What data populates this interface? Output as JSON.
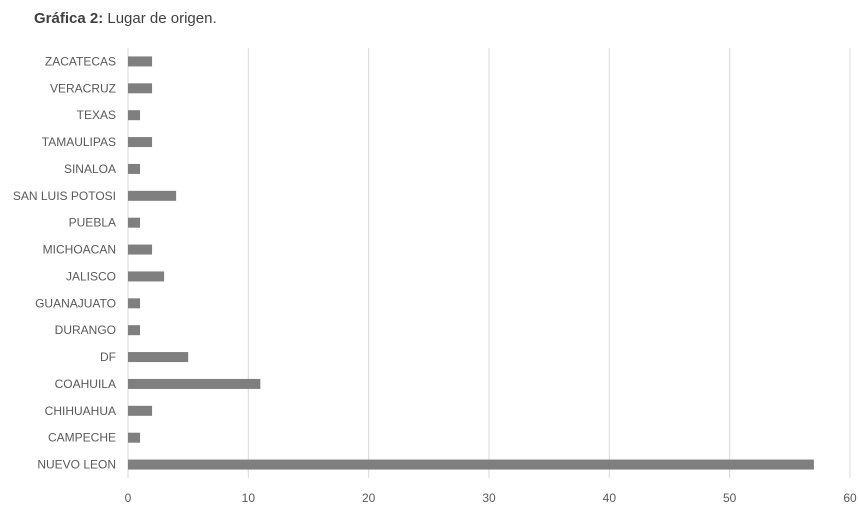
{
  "caption": {
    "label": "Gráfica 2:",
    "text": "Lugar de origen."
  },
  "chart_data": {
    "type": "bar",
    "orientation": "horizontal",
    "categories": [
      "ZACATECAS",
      "VERACRUZ",
      "TEXAS",
      "TAMAULIPAS",
      "SINALOA",
      "SAN LUIS POTOSI",
      "PUEBLA",
      "MICHOACAN",
      "JALISCO",
      "GUANAJUATO",
      "DURANGO",
      "DF",
      "COAHUILA",
      "CHIHUAHUA",
      "CAMPECHE",
      "NUEVO LEON"
    ],
    "values": [
      2,
      2,
      1,
      2,
      1,
      4,
      1,
      2,
      3,
      1,
      1,
      5,
      11,
      2,
      1,
      57
    ],
    "xlim": [
      0,
      60
    ],
    "xticks": [
      0,
      10,
      20,
      30,
      40,
      50,
      60
    ],
    "grid": true,
    "bar_color": "#7f7f7f"
  }
}
